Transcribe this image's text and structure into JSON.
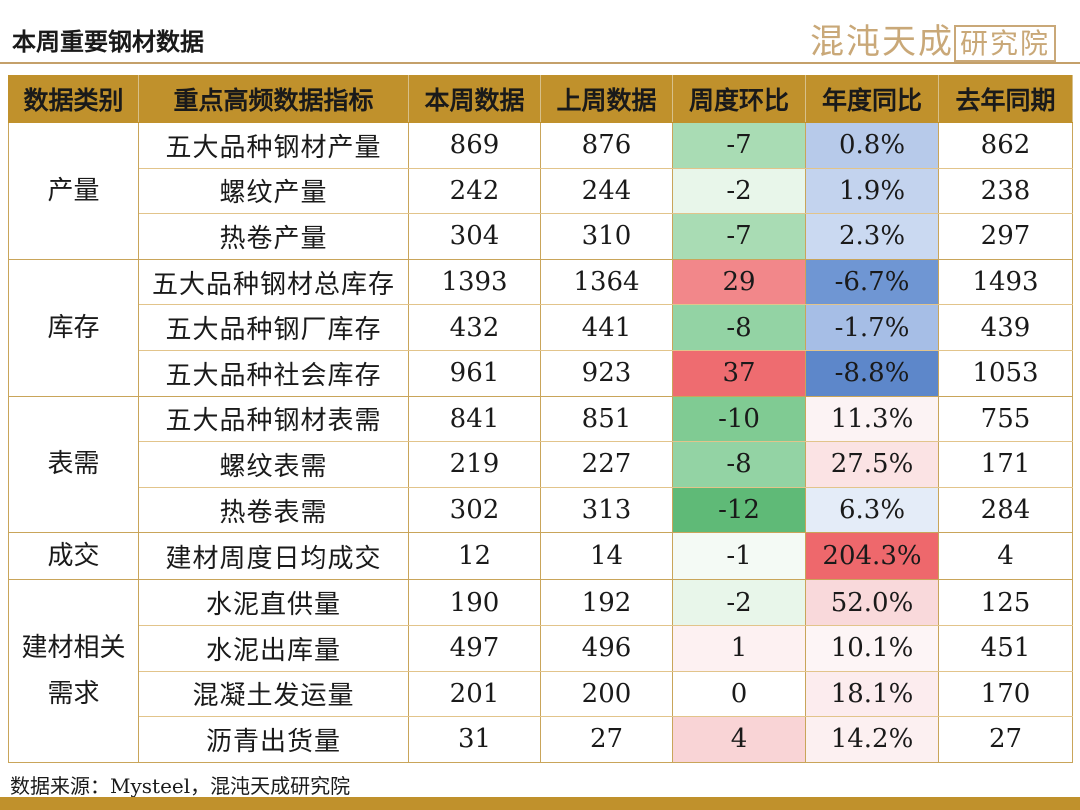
{
  "header": {
    "title": "本周重要钢材数据",
    "logo_text": "混沌天成",
    "logo_boxed": "研究院"
  },
  "table": {
    "columns": [
      "数据类别",
      "重点高频数据指标",
      "本周数据",
      "上周数据",
      "周度环比",
      "年度同比",
      "去年同期"
    ],
    "groups": [
      {
        "category": "产量",
        "rows": [
          {
            "metric": "五大品种钢材产量",
            "this_week": "869",
            "last_week": "876",
            "wow": "-7",
            "yoy": "0.8%",
            "last_year": "862",
            "wow_color": "#a9dcb4",
            "yoy_color": "#b7caea"
          },
          {
            "metric": "螺纹产量",
            "this_week": "242",
            "last_week": "244",
            "wow": "-2",
            "yoy": "1.9%",
            "last_year": "238",
            "wow_color": "#e8f6ea",
            "yoy_color": "#c3d3ee"
          },
          {
            "metric": "热卷产量",
            "this_week": "304",
            "last_week": "310",
            "wow": "-7",
            "yoy": "2.3%",
            "last_year": "297",
            "wow_color": "#a9dcb4",
            "yoy_color": "#cad9f1"
          }
        ]
      },
      {
        "category": "库存",
        "rows": [
          {
            "metric": "五大品种钢材总库存",
            "this_week": "1393",
            "last_week": "1364",
            "wow": "29",
            "yoy": "-6.7%",
            "last_year": "1493",
            "wow_color": "#f2878a",
            "yoy_color": "#6f96d3"
          },
          {
            "metric": "五大品种钢厂库存",
            "this_week": "432",
            "last_week": "441",
            "wow": "-8",
            "yoy": "-1.7%",
            "last_year": "439",
            "wow_color": "#93d3a4",
            "yoy_color": "#a6bee6"
          },
          {
            "metric": "五大品种社会库存",
            "this_week": "961",
            "last_week": "923",
            "wow": "37",
            "yoy": "-8.8%",
            "last_year": "1053",
            "wow_color": "#ee6c70",
            "yoy_color": "#5d87ca"
          }
        ]
      },
      {
        "category": "表需",
        "rows": [
          {
            "metric": "五大品种钢材表需",
            "this_week": "841",
            "last_week": "851",
            "wow": "-10",
            "yoy": "11.3%",
            "last_year": "755",
            "wow_color": "#80cb93",
            "yoy_color": "#fcf3f4"
          },
          {
            "metric": "螺纹表需",
            "this_week": "219",
            "last_week": "227",
            "wow": "-8",
            "yoy": "27.5%",
            "last_year": "171",
            "wow_color": "#93d3a4",
            "yoy_color": "#fbe3e4"
          },
          {
            "metric": "热卷表需",
            "this_week": "302",
            "last_week": "313",
            "wow": "-12",
            "yoy": "6.3%",
            "last_year": "284",
            "wow_color": "#5fba77",
            "yoy_color": "#e4ecf8"
          }
        ]
      },
      {
        "category": "成交",
        "rows": [
          {
            "metric": "建材周度日均成交",
            "this_week": "12",
            "last_week": "14",
            "wow": "-1",
            "yoy": "204.3%",
            "last_year": "4",
            "wow_color": "#f4faf5",
            "yoy_color": "#ee686c"
          }
        ]
      },
      {
        "category": "建材相关需求",
        "rows": [
          {
            "metric": "水泥直供量",
            "this_week": "190",
            "last_week": "192",
            "wow": "-2",
            "yoy": "52.0%",
            "last_year": "125",
            "wow_color": "#e8f6ea",
            "yoy_color": "#f9d9db"
          },
          {
            "metric": "水泥出库量",
            "this_week": "497",
            "last_week": "496",
            "wow": "1",
            "yoy": "10.1%",
            "last_year": "451",
            "wow_color": "#fdf1f2",
            "yoy_color": "#fdf5f6"
          },
          {
            "metric": "混凝土发运量",
            "this_week": "201",
            "last_week": "200",
            "wow": "0",
            "yoy": "18.1%",
            "last_year": "170",
            "wow_color": "#ffffff",
            "yoy_color": "#fcecee"
          },
          {
            "metric": "沥青出货量",
            "this_week": "31",
            "last_week": "27",
            "wow": "4",
            "yoy": "14.2%",
            "last_year": "27",
            "wow_color": "#f9d4d6",
            "yoy_color": "#fcf0f1"
          }
        ]
      }
    ]
  },
  "footer": {
    "source": "数据来源：Mysteel，混沌天成研究院"
  }
}
